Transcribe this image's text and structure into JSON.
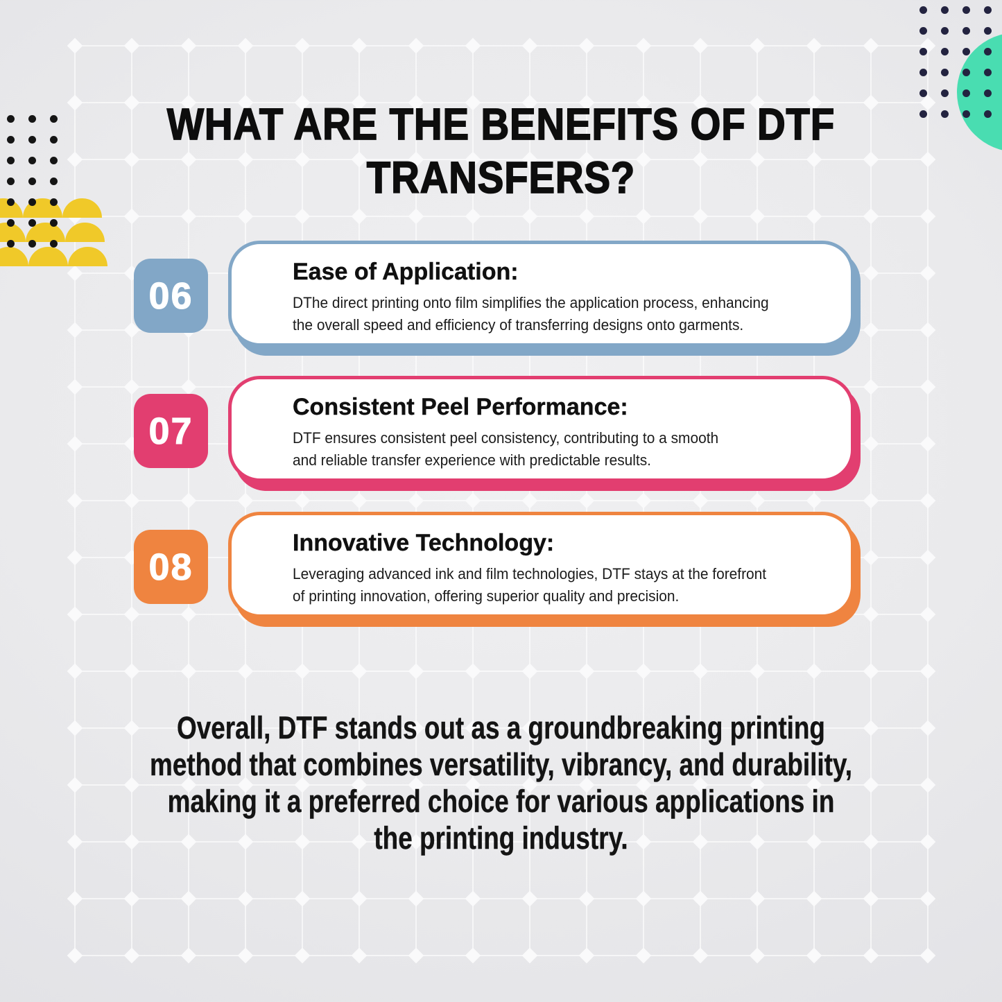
{
  "page": {
    "title_line1": "WHAT ARE THE BENEFITS OF DTF",
    "title_line2": "TRANSFERS?"
  },
  "benefits": [
    {
      "number": "06",
      "accent": "#82a7c7",
      "title": "Ease of Application:",
      "description": "DThe direct printing onto film simplifies the application process, enhancing\nthe overall speed and efficiency of transferring designs onto garments."
    },
    {
      "number": "07",
      "accent": "#e23e70",
      "title": "Consistent Peel Performance:",
      "description": "DTF ensures consistent peel consistency, contributing to a smooth\nand reliable transfer experience with predictable results."
    },
    {
      "number": "08",
      "accent": "#ef8440",
      "title": "Innovative Technology:",
      "description": "Leveraging advanced ink and film technologies, DTF stays at the forefront\nof printing innovation, offering superior quality and precision."
    }
  ],
  "closing": {
    "line1": "Overall, DTF stands out as a groundbreaking printing",
    "line2": "method that combines versatility, vibrancy, and durability,",
    "line3": "making it a preferred choice for various applications in",
    "line4": "the printing industry."
  },
  "decorations": {
    "teal_circle_color": "#49ddb1",
    "yellow_scallop_color": "#f0c929",
    "dots_top_right_color": "#232340",
    "dots_left_color": "#151515",
    "grid_line_color": "#ffffff"
  }
}
